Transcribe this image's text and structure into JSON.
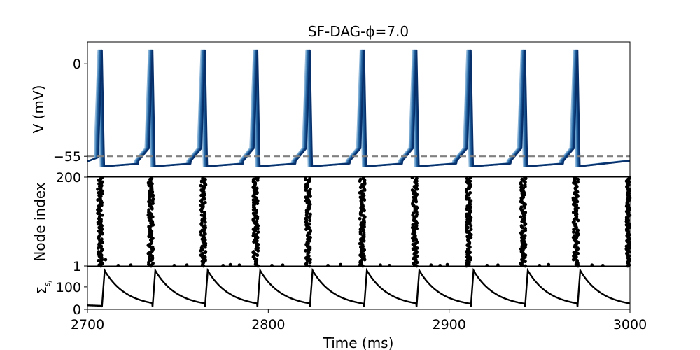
{
  "chart_data": {
    "title": "SF-DAG-ϕ=7.0",
    "xlabel": "Time (ms)",
    "xlim": [
      2700,
      3000
    ],
    "xticks": [
      2700,
      2800,
      2900,
      3000
    ],
    "spike_times": [
      2707,
      2735,
      2764,
      2793,
      2822,
      2852,
      2881,
      2911,
      2941,
      2970
    ],
    "panels": [
      {
        "type": "line",
        "ylabel": "V (mV)",
        "ylim": [
          -67,
          13
        ],
        "yticks": [
          0,
          -55
        ],
        "grid": false,
        "threshold": {
          "value": -55,
          "style": "dashed",
          "color": "#808080"
        },
        "series_colors": [
          "#8fb7d9",
          "#5b96c7",
          "#2c6aa6",
          "#154f8c",
          "#08306b"
        ],
        "rest_level": -60,
        "peak_level": 8,
        "trough_level": -61
      },
      {
        "type": "scatter",
        "ylabel": "Node index",
        "ylim": [
          1,
          200
        ],
        "yticks": [
          200,
          1
        ],
        "marker_color": "#000000",
        "stray_points": [
          {
            "t": 2710,
            "n": 15
          },
          {
            "t": 2717,
            "n": 2
          },
          {
            "t": 2724,
            "n": 3
          },
          {
            "t": 2748,
            "n": 2
          },
          {
            "t": 2755,
            "n": 3
          },
          {
            "t": 2775,
            "n": 2
          },
          {
            "t": 2779,
            "n": 4
          },
          {
            "t": 2784,
            "n": 3
          },
          {
            "t": 2802,
            "n": 2
          },
          {
            "t": 2808,
            "n": 3
          },
          {
            "t": 2833,
            "n": 2
          },
          {
            "t": 2840,
            "n": 4
          },
          {
            "t": 2862,
            "n": 3
          },
          {
            "t": 2867,
            "n": 2
          },
          {
            "t": 2890,
            "n": 3
          },
          {
            "t": 2895,
            "n": 2
          },
          {
            "t": 2899,
            "n": 4
          },
          {
            "t": 2921,
            "n": 2
          },
          {
            "t": 2927,
            "n": 3
          },
          {
            "t": 2950,
            "n": 2
          },
          {
            "t": 2955,
            "n": 4
          },
          {
            "t": 2979,
            "n": 3
          },
          {
            "t": 2985,
            "n": 2
          }
        ]
      },
      {
        "type": "line",
        "ylabel": "Σ s_i",
        "ylabel_main": "Σ",
        "ylabel_sub": "s",
        "ylabel_subsub": "i",
        "ylim": [
          0,
          190
        ],
        "yticks": [
          0,
          100
        ],
        "peak_value": 173,
        "base_value": 10,
        "decay_ms": 12,
        "color": "#000000"
      }
    ]
  }
}
